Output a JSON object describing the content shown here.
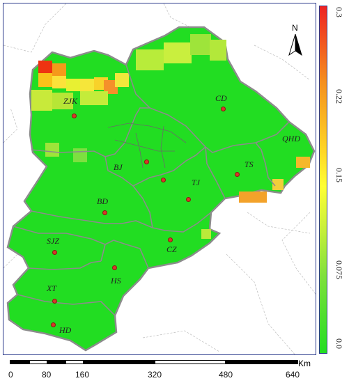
{
  "map": {
    "north_label": "N",
    "cities": [
      {
        "code": "ZJK",
        "label": "ZJK"
      },
      {
        "code": "CD",
        "label": "CD"
      },
      {
        "code": "QHD",
        "label": "QHD"
      },
      {
        "code": "BJ",
        "label": "BJ"
      },
      {
        "code": "TS",
        "label": "TS"
      },
      {
        "code": "TJ",
        "label": "TJ"
      },
      {
        "code": "BD",
        "label": "BD"
      },
      {
        "code": "SJZ",
        "label": "SJZ"
      },
      {
        "code": "CZ",
        "label": "CZ"
      },
      {
        "code": "HS",
        "label": "HS"
      },
      {
        "code": "XT",
        "label": "XT"
      },
      {
        "code": "HD",
        "label": "HD"
      }
    ],
    "colors": {
      "low": "#22dd22",
      "mid": "#ffff33",
      "high": "#ee2222",
      "border": "#8c8c8c"
    }
  },
  "legend": {
    "ticks": [
      "0.3",
      "0.22",
      "0.15",
      "0.075",
      "0.0"
    ]
  },
  "scale": {
    "labels": [
      "0",
      "80",
      "160",
      "320",
      "480",
      "640"
    ],
    "unit": "Km"
  }
}
